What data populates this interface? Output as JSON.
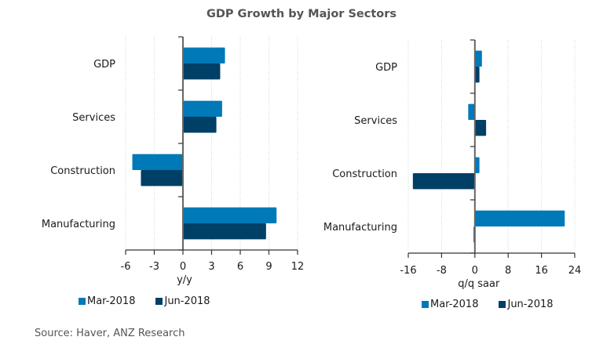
{
  "title": "GDP Growth by Major Sectors",
  "source": "Source: Haver, ANZ Research",
  "colors": {
    "mar": "#0079b8",
    "jun": "#003f66"
  },
  "legend": [
    {
      "label": "Mar-2018",
      "color": "#0079b8"
    },
    {
      "label": "Jun-2018",
      "color": "#003f66"
    }
  ],
  "chart_data": [
    {
      "type": "bar",
      "orientation": "horizontal",
      "categories": [
        "GDP",
        "Services",
        "Construction",
        "Manufacturing"
      ],
      "series": [
        {
          "name": "Mar-2018",
          "values": [
            4.4,
            4.1,
            -5.3,
            9.8
          ]
        },
        {
          "name": "Jun-2018",
          "values": [
            3.9,
            3.5,
            -4.4,
            8.7
          ]
        }
      ],
      "xlabel": "y/y",
      "xlim": [
        -6,
        12
      ],
      "xticks": [
        -6,
        -3,
        0,
        3,
        6,
        9,
        12
      ],
      "grid": true,
      "legend_position": "bottom"
    },
    {
      "type": "bar",
      "orientation": "horizontal",
      "categories": [
        "GDP",
        "Services",
        "Construction",
        "Manufacturing"
      ],
      "series": [
        {
          "name": "Mar-2018",
          "values": [
            1.7,
            -1.6,
            1.1,
            21.6
          ]
        },
        {
          "name": "Jun-2018",
          "values": [
            1.1,
            2.7,
            -14.9,
            -0.3
          ]
        }
      ],
      "xlabel": "q/q saar",
      "xlim": [
        -16,
        24
      ],
      "xticks": [
        -16,
        -8,
        0,
        8,
        16,
        24
      ],
      "grid": true,
      "legend_position": "bottom"
    }
  ]
}
